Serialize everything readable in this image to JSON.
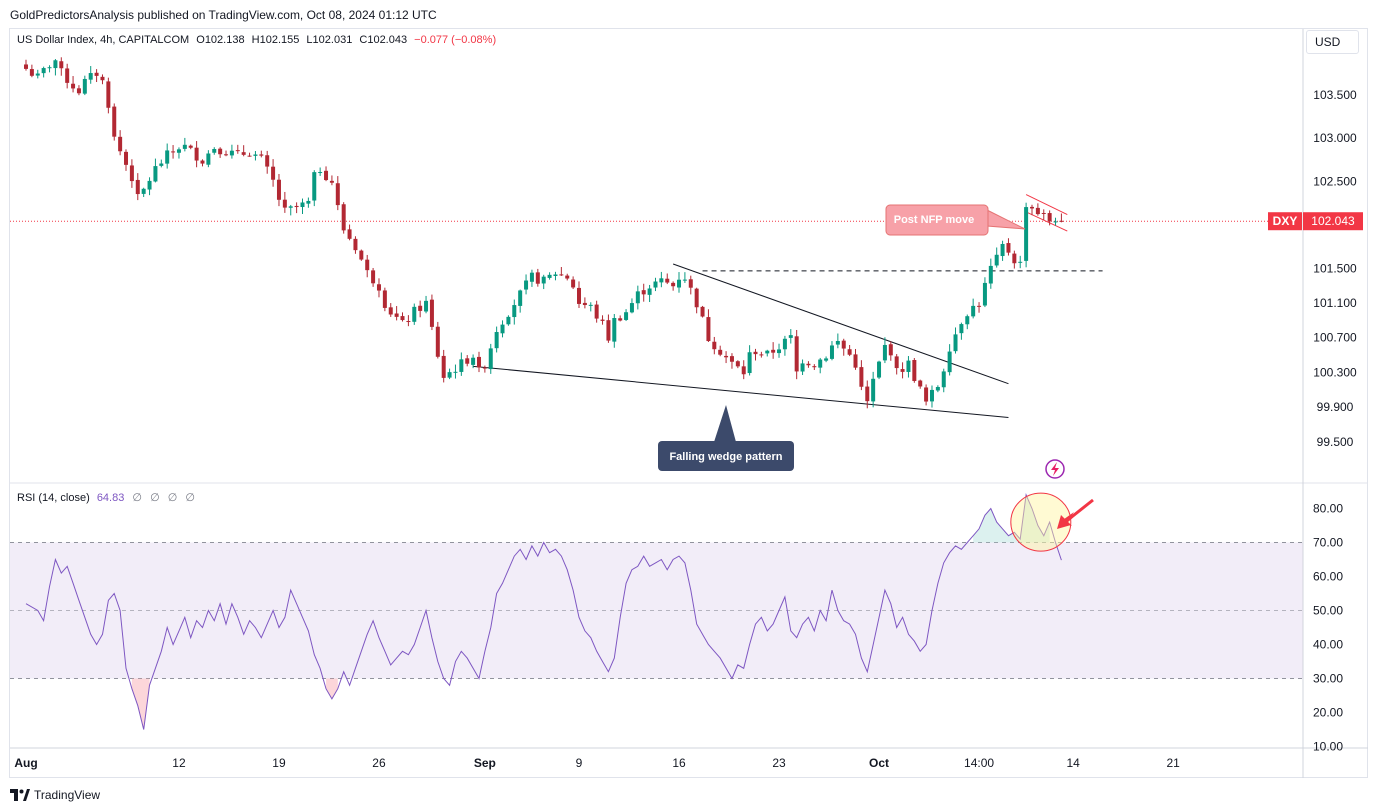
{
  "publisher_line": "GoldPredictorsAnalysis published on TradingView.com, Oct 08, 2024 01:12 UTC",
  "currency": "USD",
  "footer_brand": "TradingView",
  "legend": {
    "symbol": "US Dollar Index, 4h, CAPITALCOM",
    "o_label": "O",
    "o": "102.138",
    "h_label": "H",
    "h": "102.155",
    "l_label": "L",
    "l": "102.031",
    "c_label": "C",
    "c": "102.043",
    "change": "−0.077 (−0.08%)"
  },
  "rsi_legend": {
    "title": "RSI (14, close)",
    "value": "64.83",
    "na_values": [
      "∅",
      "∅",
      "∅",
      "∅"
    ]
  },
  "colors": {
    "bull": "#089981",
    "bear": "#b22833",
    "rsi_line": "#7e57c2",
    "rsi_band": "#ede7f6",
    "price_tag": "#f23645",
    "annotation_pink": "#f7a1a8",
    "annotation_dark": "#3c4a6b"
  },
  "chart_data": [
    {
      "type": "candlestick",
      "title": "US Dollar Index, 4h, CAPITALCOM",
      "x_ticks": [
        "Aug",
        "12",
        "19",
        "26",
        "Sep",
        "9",
        "16",
        "23",
        "Oct",
        "14:00",
        "14",
        "21"
      ],
      "y_ticks": [
        "103.500",
        "103.000",
        "102.500",
        "101.500",
        "101.100",
        "100.700",
        "100.300",
        "99.900",
        "99.500"
      ],
      "ylim": [
        99.35,
        104.05
      ],
      "last_price": 102.043,
      "last_price_label": "DXY",
      "last_price_text": "102.043",
      "path": [
        [
          0,
          103.8
        ],
        [
          2,
          103.7
        ],
        [
          4,
          103.85
        ],
        [
          5,
          103.9
        ],
        [
          6,
          103.75
        ],
        [
          8,
          103.6
        ],
        [
          9,
          103.55
        ],
        [
          10,
          103.65
        ],
        [
          11,
          103.7
        ],
        [
          12,
          103.75
        ],
        [
          13,
          103.65
        ],
        [
          14,
          103.4
        ],
        [
          15,
          103.0
        ],
        [
          16,
          102.85
        ],
        [
          18,
          102.55
        ],
        [
          19,
          102.3
        ],
        [
          20,
          102.4
        ],
        [
          22,
          102.65
        ],
        [
          24,
          102.8
        ],
        [
          26,
          102.9
        ],
        [
          27,
          102.9
        ],
        [
          28,
          102.85
        ],
        [
          30,
          102.75
        ],
        [
          32,
          102.9
        ],
        [
          34,
          102.85
        ],
        [
          36,
          102.8
        ],
        [
          38,
          102.85
        ],
        [
          40,
          102.75
        ],
        [
          42,
          102.5
        ],
        [
          43,
          102.3
        ],
        [
          44,
          102.15
        ],
        [
          46,
          102.2
        ],
        [
          48,
          102.25
        ],
        [
          49,
          102.55
        ],
        [
          50,
          102.65
        ],
        [
          52,
          102.5
        ],
        [
          53,
          102.2
        ],
        [
          54,
          101.95
        ],
        [
          56,
          101.75
        ],
        [
          57,
          101.6
        ],
        [
          58,
          101.45
        ],
        [
          60,
          101.3
        ],
        [
          61,
          101.1
        ],
        [
          62,
          101.0
        ],
        [
          64,
          100.85
        ],
        [
          66,
          101.0
        ],
        [
          68,
          101.1
        ],
        [
          69,
          100.8
        ],
        [
          70,
          100.5
        ],
        [
          71,
          100.25
        ],
        [
          72,
          100.3
        ],
        [
          74,
          100.4
        ],
        [
          76,
          100.5
        ],
        [
          77,
          100.3
        ],
        [
          78,
          100.4
        ],
        [
          79,
          100.6
        ],
        [
          80,
          100.8
        ],
        [
          82,
          101.0
        ],
        [
          84,
          101.2
        ],
        [
          86,
          101.4
        ],
        [
          88,
          101.35
        ],
        [
          90,
          101.45
        ],
        [
          92,
          101.4
        ],
        [
          93,
          101.3
        ],
        [
          94,
          101.1
        ],
        [
          96,
          101.05
        ],
        [
          98,
          100.85
        ],
        [
          99,
          100.7
        ],
        [
          100,
          100.9
        ],
        [
          102,
          101.0
        ],
        [
          104,
          101.2
        ],
        [
          106,
          101.3
        ],
        [
          108,
          101.35
        ],
        [
          110,
          101.3
        ],
        [
          111,
          101.4
        ],
        [
          112,
          101.4
        ],
        [
          114,
          101.1
        ],
        [
          115,
          100.9
        ],
        [
          116,
          100.7
        ],
        [
          118,
          100.55
        ],
        [
          120,
          100.4
        ],
        [
          122,
          100.3
        ],
        [
          123,
          100.5
        ],
        [
          124,
          100.55
        ],
        [
          126,
          100.5
        ],
        [
          128,
          100.6
        ],
        [
          130,
          100.7
        ],
        [
          131,
          100.3
        ],
        [
          132,
          100.45
        ],
        [
          134,
          100.4
        ],
        [
          136,
          100.5
        ],
        [
          137,
          100.6
        ],
        [
          138,
          100.65
        ],
        [
          140,
          100.5
        ],
        [
          141,
          100.4
        ],
        [
          142,
          100.1
        ],
        [
          143,
          99.95
        ],
        [
          144,
          100.2
        ],
        [
          146,
          100.6
        ],
        [
          147,
          100.55
        ],
        [
          148,
          100.3
        ],
        [
          150,
          100.4
        ],
        [
          151,
          100.25
        ],
        [
          152,
          100.1
        ],
        [
          153,
          99.95
        ],
        [
          155,
          100.15
        ],
        [
          156,
          100.35
        ],
        [
          157,
          100.6
        ],
        [
          158,
          100.75
        ],
        [
          159,
          100.9
        ],
        [
          160,
          101.0
        ],
        [
          162,
          101.1
        ],
        [
          163,
          101.3
        ],
        [
          164,
          101.5
        ],
        [
          165,
          101.6
        ],
        [
          166,
          101.75
        ],
        [
          167,
          101.7
        ],
        [
          168,
          101.6
        ],
        [
          169,
          101.55
        ],
        [
          170,
          102.25
        ],
        [
          171,
          102.2
        ],
        [
          172,
          102.15
        ],
        [
          173,
          102.1
        ],
        [
          174,
          102.05
        ],
        [
          175,
          102.08
        ],
        [
          176,
          102.043
        ]
      ],
      "dashed_resistance": 101.47,
      "annotations": [
        {
          "text": "Post NFP move"
        },
        {
          "text": "Falling wedge pattern"
        }
      ]
    },
    {
      "type": "line",
      "title": "RSI (14, close)",
      "y_ticks": [
        "80.00",
        "70.00",
        "60.00",
        "50.00",
        "40.00",
        "30.00",
        "20.00",
        "10.00"
      ],
      "ylim": [
        10,
        87
      ],
      "levels": {
        "upper": 70,
        "middle": 50,
        "lower": 30
      },
      "points": [
        [
          0,
          52
        ],
        [
          2,
          50
        ],
        [
          3,
          47
        ],
        [
          4,
          57
        ],
        [
          5,
          65
        ],
        [
          6,
          61
        ],
        [
          7,
          63
        ],
        [
          8,
          58
        ],
        [
          9,
          53
        ],
        [
          10,
          48
        ],
        [
          11,
          43
        ],
        [
          12,
          40
        ],
        [
          13,
          43
        ],
        [
          14,
          53
        ],
        [
          15,
          55
        ],
        [
          16,
          50
        ],
        [
          17,
          33
        ],
        [
          18,
          27
        ],
        [
          19,
          22
        ],
        [
          20,
          15
        ],
        [
          21,
          28
        ],
        [
          22,
          33
        ],
        [
          23,
          38
        ],
        [
          24,
          45
        ],
        [
          25,
          40
        ],
        [
          26,
          44
        ],
        [
          27,
          48
        ],
        [
          28,
          42
        ],
        [
          29,
          47
        ],
        [
          30,
          45
        ],
        [
          31,
          50
        ],
        [
          32,
          47
        ],
        [
          33,
          52
        ],
        [
          34,
          46
        ],
        [
          35,
          52
        ],
        [
          36,
          48
        ],
        [
          37,
          43
        ],
        [
          38,
          47
        ],
        [
          39,
          45
        ],
        [
          40,
          42
        ],
        [
          41,
          46
        ],
        [
          42,
          50
        ],
        [
          43,
          45
        ],
        [
          44,
          48
        ],
        [
          45,
          56
        ],
        [
          46,
          52
        ],
        [
          47,
          48
        ],
        [
          48,
          44
        ],
        [
          49,
          37
        ],
        [
          50,
          33
        ],
        [
          51,
          27
        ],
        [
          52,
          24
        ],
        [
          53,
          27
        ],
        [
          54,
          32
        ],
        [
          55,
          28
        ],
        [
          56,
          33
        ],
        [
          57,
          38
        ],
        [
          58,
          43
        ],
        [
          59,
          47
        ],
        [
          60,
          42
        ],
        [
          61,
          38
        ],
        [
          62,
          34
        ],
        [
          63,
          36
        ],
        [
          64,
          38
        ],
        [
          65,
          37
        ],
        [
          66,
          40
        ],
        [
          67,
          45
        ],
        [
          68,
          50
        ],
        [
          69,
          42
        ],
        [
          70,
          35
        ],
        [
          71,
          30
        ],
        [
          72,
          28
        ],
        [
          73,
          35
        ],
        [
          74,
          38
        ],
        [
          75,
          36
        ],
        [
          76,
          33
        ],
        [
          77,
          30
        ],
        [
          78,
          38
        ],
        [
          79,
          45
        ],
        [
          80,
          55
        ],
        [
          81,
          58
        ],
        [
          82,
          62
        ],
        [
          83,
          66
        ],
        [
          84,
          68
        ],
        [
          85,
          65
        ],
        [
          86,
          69
        ],
        [
          87,
          66
        ],
        [
          88,
          70
        ],
        [
          89,
          67
        ],
        [
          90,
          68
        ],
        [
          91,
          66
        ],
        [
          92,
          62
        ],
        [
          93,
          56
        ],
        [
          94,
          48
        ],
        [
          95,
          44
        ],
        [
          96,
          42
        ],
        [
          97,
          38
        ],
        [
          98,
          35
        ],
        [
          99,
          32
        ],
        [
          100,
          36
        ],
        [
          101,
          48
        ],
        [
          102,
          58
        ],
        [
          103,
          62
        ],
        [
          104,
          63
        ],
        [
          105,
          66
        ],
        [
          106,
          63
        ],
        [
          107,
          64
        ],
        [
          108,
          65
        ],
        [
          109,
          62
        ],
        [
          110,
          65
        ],
        [
          111,
          66
        ],
        [
          112,
          64
        ],
        [
          113,
          56
        ],
        [
          114,
          46
        ],
        [
          115,
          43
        ],
        [
          116,
          40
        ],
        [
          117,
          38
        ],
        [
          118,
          36
        ],
        [
          119,
          33
        ],
        [
          120,
          30
        ],
        [
          121,
          34
        ],
        [
          122,
          33
        ],
        [
          123,
          40
        ],
        [
          124,
          46
        ],
        [
          125,
          48
        ],
        [
          126,
          44
        ],
        [
          127,
          46
        ],
        [
          128,
          50
        ],
        [
          129,
          54
        ],
        [
          130,
          44
        ],
        [
          131,
          42
        ],
        [
          132,
          46
        ],
        [
          133,
          48
        ],
        [
          134,
          44
        ],
        [
          135,
          50
        ],
        [
          136,
          47
        ],
        [
          137,
          56
        ],
        [
          138,
          50
        ],
        [
          139,
          47
        ],
        [
          140,
          46
        ],
        [
          141,
          43
        ],
        [
          142,
          36
        ],
        [
          143,
          32
        ],
        [
          144,
          40
        ],
        [
          146,
          56
        ],
        [
          147,
          52
        ],
        [
          148,
          45
        ],
        [
          149,
          48
        ],
        [
          150,
          43
        ],
        [
          151,
          41
        ],
        [
          152,
          38
        ],
        [
          153,
          40
        ],
        [
          154,
          50
        ],
        [
          155,
          58
        ],
        [
          156,
          64
        ],
        [
          157,
          67
        ],
        [
          158,
          69
        ],
        [
          159,
          68
        ],
        [
          160,
          70
        ],
        [
          161,
          72
        ],
        [
          162,
          74
        ],
        [
          163,
          78
        ],
        [
          164,
          80
        ],
        [
          165,
          76
        ],
        [
          166,
          74
        ],
        [
          167,
          72
        ],
        [
          168,
          73
        ],
        [
          169,
          71
        ],
        [
          170,
          84
        ],
        [
          171,
          80
        ],
        [
          172,
          75
        ],
        [
          173,
          72
        ],
        [
          174,
          76
        ],
        [
          175,
          70
        ],
        [
          176,
          64.83
        ]
      ]
    }
  ]
}
